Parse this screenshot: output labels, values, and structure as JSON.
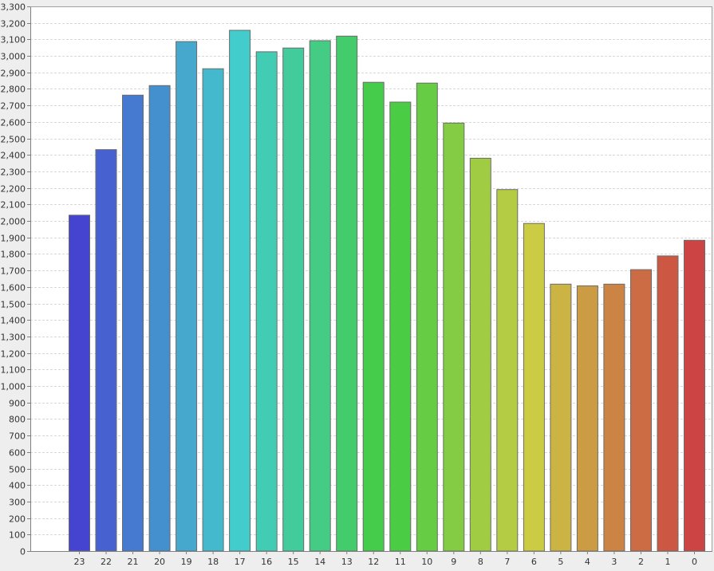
{
  "chart_data": {
    "type": "bar",
    "title": "",
    "xlabel": "",
    "ylabel": "",
    "ylim": [
      0,
      3300
    ],
    "y_tick_step": 100,
    "grid": true,
    "legend": "none",
    "categories": [
      "23",
      "22",
      "21",
      "20",
      "19",
      "18",
      "17",
      "16",
      "15",
      "14",
      "13",
      "12",
      "11",
      "10",
      "9",
      "8",
      "7",
      "6",
      "5",
      "4",
      "3",
      "2",
      "1",
      "0"
    ],
    "values": [
      2035,
      2432,
      2762,
      2820,
      3087,
      2922,
      3155,
      3025,
      3048,
      3092,
      3120,
      2840,
      2720,
      2835,
      2593,
      2380,
      2190,
      1985,
      1617,
      1607,
      1617,
      1705,
      1788,
      1883
    ],
    "colors": [
      "#4444d0",
      "#4861d0",
      "#467ad0",
      "#4490ce",
      "#46a8cc",
      "#44b8cc",
      "#42cccc",
      "#42ccb4",
      "#42cc9c",
      "#44cc84",
      "#44cc6c",
      "#44cc4a",
      "#4acc44",
      "#66cc44",
      "#84cc44",
      "#a0cc44",
      "#b4cc44",
      "#cccc44",
      "#ccb444",
      "#cc9c44",
      "#cc8444",
      "#cc6c44",
      "#cc5844",
      "#cc4444"
    ]
  }
}
